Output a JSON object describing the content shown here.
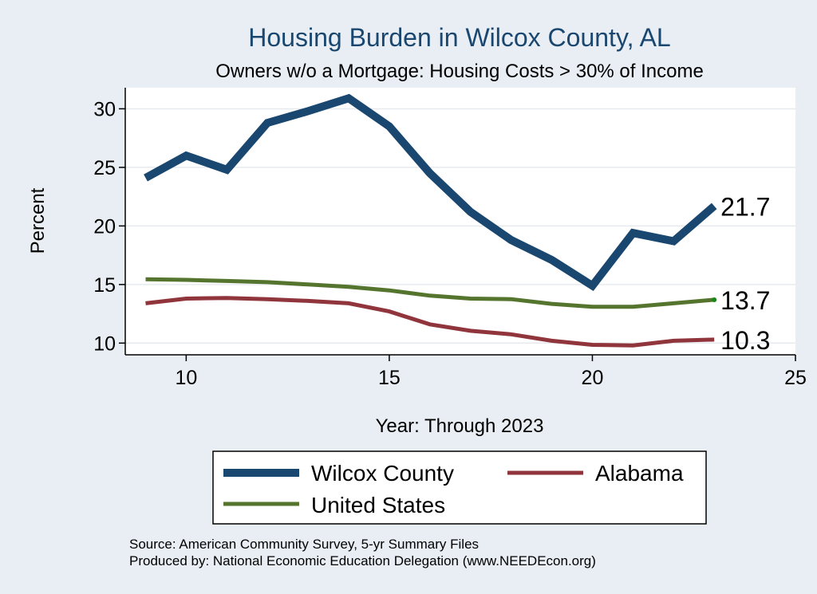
{
  "chart_data": {
    "type": "line",
    "title": "Housing Burden in Wilcox County, AL",
    "subtitle": "Owners w/o a Mortgage: Housing Costs > 30% of Income",
    "xlabel": "Year: Through 2023",
    "ylabel": "Percent",
    "xlim": [
      8.5,
      25
    ],
    "ylim": [
      9.0,
      31.8
    ],
    "xticks": [
      10,
      15,
      20,
      25
    ],
    "yticks": [
      10,
      15,
      20,
      25,
      30
    ],
    "grid": true,
    "x": [
      9,
      10,
      11,
      12,
      13,
      14,
      15,
      16,
      17,
      18,
      19,
      20,
      21,
      22,
      23
    ],
    "series": [
      {
        "name": "Wilcox County",
        "color": "#1a476f",
        "values": [
          24.1,
          26.0,
          24.8,
          28.8,
          29.8,
          30.9,
          28.5,
          24.5,
          21.2,
          18.8,
          17.1,
          14.9,
          19.4,
          18.7,
          21.7
        ],
        "end_label": "21.7"
      },
      {
        "name": "Alabama",
        "color": "#90353b",
        "values": [
          13.4,
          13.8,
          13.85,
          13.75,
          13.6,
          13.4,
          12.7,
          11.6,
          11.05,
          10.75,
          10.2,
          9.85,
          9.8,
          10.2,
          10.3
        ],
        "end_label": "10.3"
      },
      {
        "name": "United States",
        "color": "#55752f",
        "values": [
          15.45,
          15.4,
          15.3,
          15.2,
          15.0,
          14.8,
          14.5,
          14.05,
          13.8,
          13.75,
          13.35,
          13.1,
          13.1,
          13.4,
          13.7
        ],
        "end_label": "13.7"
      }
    ],
    "legend": {
      "position": "bottom",
      "entries": [
        "Wilcox County",
        "Alabama",
        "United States"
      ]
    }
  },
  "source": {
    "line1": "Source: American Community Survey, 5-yr Summary Files",
    "line2": "Produced by: National Economic Education Delegation (www.NEEDEcon.org)"
  }
}
